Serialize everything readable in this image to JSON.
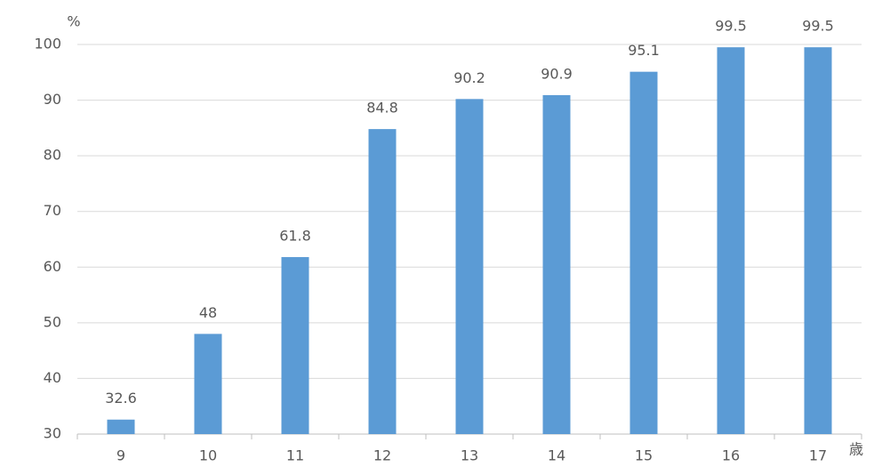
{
  "chart_data": {
    "type": "bar",
    "y_label": "%",
    "x_label": "歳",
    "categories": [
      "9",
      "10",
      "11",
      "12",
      "13",
      "14",
      "15",
      "16",
      "17"
    ],
    "values": [
      32.6,
      48,
      61.8,
      84.8,
      90.2,
      90.9,
      95.1,
      99.5,
      99.5
    ],
    "color": "#5b9bd5",
    "ylim": [
      30,
      100
    ],
    "yticks": [
      30,
      40,
      50,
      60,
      70,
      80,
      90,
      100
    ],
    "grid": true
  }
}
